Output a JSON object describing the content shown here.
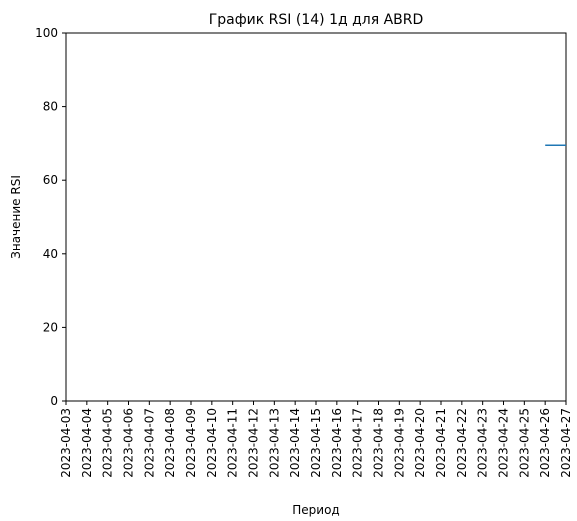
{
  "chart_data": {
    "type": "line",
    "title": "График RSI (14) 1д для ABRD",
    "xlabel": "Период",
    "ylabel": "Значение RSI",
    "x": [
      "2023-04-03",
      "2023-04-04",
      "2023-04-05",
      "2023-04-06",
      "2023-04-07",
      "2023-04-08",
      "2023-04-09",
      "2023-04-10",
      "2023-04-11",
      "2023-04-12",
      "2023-04-13",
      "2023-04-14",
      "2023-04-15",
      "2023-04-16",
      "2023-04-17",
      "2023-04-18",
      "2023-04-19",
      "2023-04-20",
      "2023-04-21",
      "2023-04-22",
      "2023-04-23",
      "2023-04-24",
      "2023-04-25",
      "2023-04-26",
      "2023-04-27"
    ],
    "ylim": [
      0,
      100
    ],
    "yticks": [
      0,
      20,
      40,
      60,
      80,
      100
    ],
    "grid": false,
    "legend": "none",
    "series": [
      {
        "color": "#1f77b4",
        "points": [
          {
            "x": "2023-04-26",
            "y": 69.5
          },
          {
            "x": "2023-04-27",
            "y": 69.5
          }
        ]
      }
    ]
  }
}
